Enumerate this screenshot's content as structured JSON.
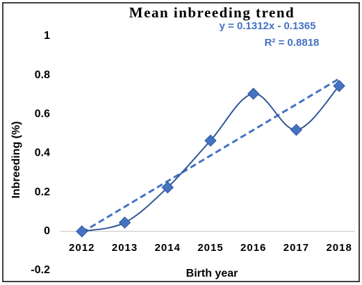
{
  "chart_data": {
    "type": "line",
    "title": "Mean inbreeding trend",
    "x_label": "Birth year",
    "y_label": "Inbreeding (%)",
    "categories": [
      "2012",
      "2013",
      "2014",
      "2015",
      "2016",
      "2017",
      "2018"
    ],
    "series": [
      {
        "name": "Mean inbreeding",
        "color": "#4472c4",
        "line_color": "#2f5597",
        "values": [
          0,
          0.045,
          0.225,
          0.465,
          0.705,
          0.52,
          0.745
        ]
      }
    ],
    "trendline": {
      "label": "y = 0.1312x - 0.1365",
      "r2_label": "R² = 0.8818",
      "slope": 0.1312,
      "intercept": -0.1365,
      "color": "#4472c4"
    },
    "ylim": [
      -0.2,
      1
    ],
    "yticks": [
      -0.2,
      0,
      0.2,
      0.4,
      0.6,
      0.8,
      1
    ],
    "grid": false
  }
}
